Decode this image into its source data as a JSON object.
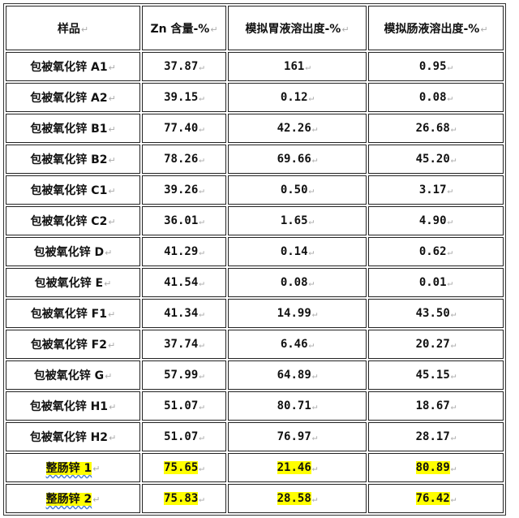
{
  "table": {
    "headers": [
      "样品",
      "Zn 含量-%",
      "模拟胃液溶出度-%",
      "模拟肠液溶出度-%"
    ],
    "paragraph_mark": "↵",
    "highlight_color": "#ffff00",
    "rows": [
      {
        "sample": "包被氧化锌 A1",
        "zn": "37.87",
        "gastric": "161",
        "intestinal": "0.95",
        "highlight": false
      },
      {
        "sample": "包被氧化锌 A2",
        "zn": "39.15",
        "gastric": "0.12",
        "intestinal": "0.08",
        "highlight": false
      },
      {
        "sample": "包被氧化锌 B1",
        "zn": "77.40",
        "gastric": "42.26",
        "intestinal": "26.68",
        "highlight": false
      },
      {
        "sample": "包被氧化锌 B2",
        "zn": "78.26",
        "gastric": "69.66",
        "intestinal": "45.20",
        "highlight": false
      },
      {
        "sample": "包被氧化锌 C1",
        "zn": "39.26",
        "gastric": "0.50",
        "intestinal": "3.17",
        "highlight": false
      },
      {
        "sample": "包被氧化锌 C2",
        "zn": "36.01",
        "gastric": "1.65",
        "intestinal": "4.90",
        "highlight": false
      },
      {
        "sample": "包被氧化锌 D",
        "zn": "41.29",
        "gastric": "0.14",
        "intestinal": "0.62",
        "highlight": false
      },
      {
        "sample": "包被氧化锌 E",
        "zn": "41.54",
        "gastric": "0.08",
        "intestinal": "0.01",
        "highlight": false
      },
      {
        "sample": "包被氧化锌 F1",
        "zn": "41.34",
        "gastric": "14.99",
        "intestinal": "43.50",
        "highlight": false
      },
      {
        "sample": "包被氧化锌 F2",
        "zn": "37.74",
        "gastric": "6.46",
        "intestinal": "20.27",
        "highlight": false
      },
      {
        "sample": "包被氧化锌 G",
        "zn": "57.99",
        "gastric": "64.89",
        "intestinal": "45.15",
        "highlight": false
      },
      {
        "sample": "包被氧化锌 H1",
        "zn": "51.07",
        "gastric": "80.71",
        "intestinal": "18.67",
        "highlight": false
      },
      {
        "sample": "包被氧化锌 H2",
        "zn": "51.07",
        "gastric": "76.97",
        "intestinal": "28.17",
        "highlight": false
      },
      {
        "sample": "整肠锌 1",
        "zn": "75.65",
        "gastric": "21.46",
        "intestinal": "80.89",
        "highlight": true
      },
      {
        "sample": "整肠锌 2",
        "zn": "75.83",
        "gastric": "28.58",
        "intestinal": "76.42",
        "highlight": true
      }
    ]
  }
}
